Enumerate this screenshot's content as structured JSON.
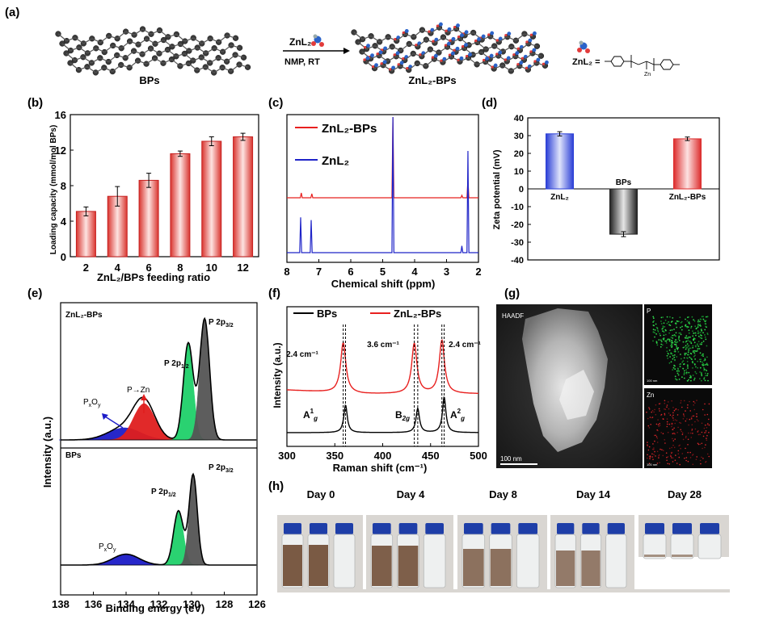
{
  "panels": {
    "a": {
      "letter": "(a)",
      "bps_label": "BPs",
      "znl2_bps_label": "ZnL₂-BPs",
      "reagent_label": "ZnL₂",
      "condition": "NMP, RT",
      "structure_label": "ZnL₂ =",
      "structure_zn": "Zn"
    },
    "b": {
      "letter": "(b)",
      "chart_data": {
        "type": "bar",
        "xlabel": "ZnL₂/BPs feeding ratio",
        "ylabel": "Loading capacity (mmol/mol BPs)",
        "categories": [
          "2",
          "4",
          "6",
          "8",
          "10",
          "12"
        ],
        "values": [
          5.1,
          6.8,
          8.6,
          11.6,
          13.0,
          13.5
        ],
        "errors": [
          0.5,
          1.1,
          0.8,
          0.3,
          0.5,
          0.4
        ],
        "ylim": [
          0,
          16
        ],
        "yticks": [
          "0",
          "4",
          "8",
          "12",
          "16"
        ]
      }
    },
    "c": {
      "letter": "(c)",
      "chart_data": {
        "type": "line",
        "xlabel": "Chemical shift (ppm)",
        "xticks": [
          "8",
          "7",
          "6",
          "5",
          "4",
          "3",
          "2"
        ],
        "xlim": [
          8,
          2
        ],
        "series": [
          {
            "name": "ZnL₂-BPs",
            "color": "#e8201f",
            "peaks": [
              [
                7.55,
                0.06
              ],
              [
                7.22,
                0.05
              ],
              [
                4.68,
                1.0
              ],
              [
                2.52,
                0.03
              ],
              [
                2.33,
                0.22
              ]
            ]
          },
          {
            "name": "ZnL₂",
            "color": "#1f24c8",
            "peaks": [
              [
                7.57,
                0.26
              ],
              [
                7.24,
                0.24
              ],
              [
                4.68,
                1.0
              ],
              [
                2.52,
                0.05
              ],
              [
                2.33,
                0.75
              ]
            ]
          }
        ]
      }
    },
    "d": {
      "letter": "(d)",
      "chart_data": {
        "type": "bar",
        "ylabel": "Zeta potential (mV)",
        "categories": [
          "ZnL₂",
          "BPs",
          "ZnL₂-BPs"
        ],
        "values": [
          31.0,
          -25.5,
          28.2
        ],
        "errors": [
          1.2,
          1.4,
          1.0
        ],
        "ylim": [
          -40,
          40
        ],
        "yticks": [
          "40",
          "30",
          "20",
          "10",
          "0",
          "-10",
          "-20",
          "-30",
          "-40"
        ]
      }
    },
    "e": {
      "letter": "(e)",
      "chart_data": {
        "type": "line",
        "xlabel": "Binding energy (eV)",
        "ylabel": "Intensity (a.u.)",
        "xticks": [
          "138",
          "136",
          "134",
          "132",
          "130",
          "128",
          "126"
        ],
        "xlim": [
          138,
          126
        ],
        "top_label": "ZnL₂-BPs",
        "bottom_label": "BPs",
        "annotations": {
          "p2p32": "P 2p",
          "p2p32_sub": "3/2",
          "p2p12": "P 2p",
          "p2p12_sub": "1/2",
          "pzn": "P→Zn",
          "pxoy_p": "P",
          "pxoy_x": "x",
          "pxoy_o": "O",
          "pxoy_y": "y"
        }
      }
    },
    "f": {
      "letter": "(f)",
      "chart_data": {
        "type": "line",
        "xlabel": "Raman shift (cm⁻¹)",
        "ylabel": "Intensity (a.u.)",
        "xticks": [
          "300",
          "350",
          "400",
          "450",
          "500"
        ],
        "xlim": [
          300,
          500
        ],
        "series": [
          {
            "name": "BPs",
            "color": "#000000",
            "peaks": [
              361.2,
              436.6,
              464.2
            ]
          },
          {
            "name": "ZnL₂-BPs",
            "color": "#e8201f",
            "peaks": [
              358.8,
              433.0,
              461.8
            ]
          }
        ],
        "shifts": [
          "2.4 cm⁻¹",
          "3.6 cm⁻¹",
          "2.4 cm⁻¹"
        ],
        "mode_labels": [
          "A",
          "B",
          "A"
        ]
      }
    },
    "g": {
      "letter": "(g)",
      "haadf_label": "HAADF",
      "scale_main": "100 nm",
      "map_p": "P",
      "map_zn": "Zn",
      "scale_small": "100 nm"
    },
    "h": {
      "letter": "(h)",
      "days": [
        "Day 0",
        "Day 4",
        "Day 8",
        "Day 14",
        "Day 28"
      ]
    }
  }
}
